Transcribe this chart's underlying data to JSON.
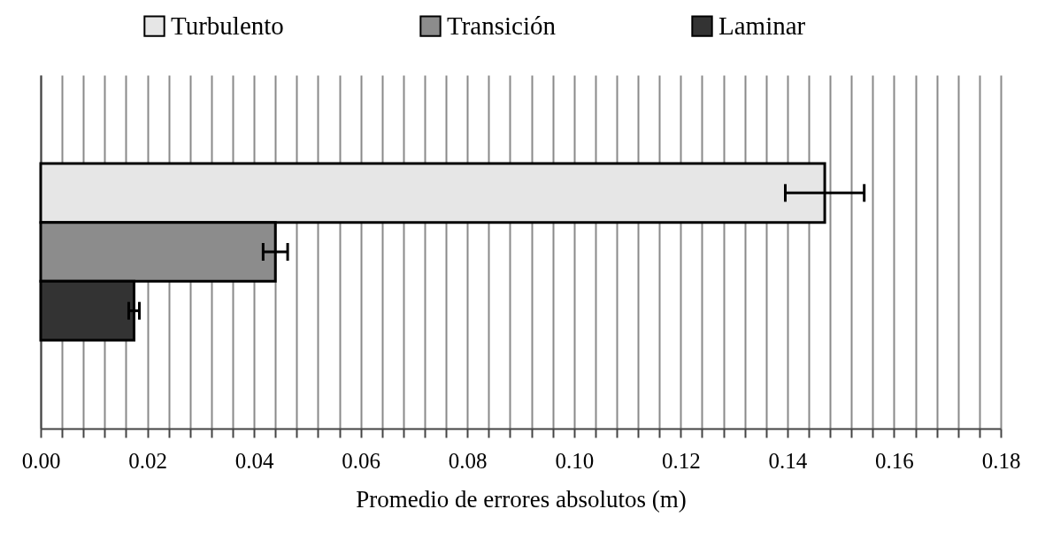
{
  "chart_data": {
    "type": "bar",
    "orientation": "horizontal",
    "categories": [
      null
    ],
    "series": [
      {
        "name": "Turbulento",
        "color": "#e6e6e6",
        "values": [
          0.147
        ],
        "errors": [
          0.0074
        ]
      },
      {
        "name": "Transición",
        "color": "#8c8c8c",
        "values": [
          0.044
        ],
        "errors": [
          0.0023
        ]
      },
      {
        "name": "Laminar",
        "color": "#333333",
        "values": [
          0.0175
        ],
        "errors": [
          0.001
        ]
      }
    ],
    "xlabel": "Promedio de errores absolutos (m)",
    "xlim": [
      0,
      0.18
    ],
    "xticks": [
      {
        "value": 0,
        "label": "0.00"
      },
      {
        "value": 0.004,
        "label": null
      },
      {
        "value": 0.008,
        "label": null
      },
      {
        "value": 0.012,
        "label": null
      },
      {
        "value": 0.016,
        "label": null
      },
      {
        "value": 0.02,
        "label": "0.02"
      },
      {
        "value": 0.024,
        "label": null
      },
      {
        "value": 0.028,
        "label": null
      },
      {
        "value": 0.032,
        "label": null
      },
      {
        "value": 0.036,
        "label": null
      },
      {
        "value": 0.04,
        "label": "0.04"
      },
      {
        "value": 0.044,
        "label": null
      },
      {
        "value": 0.048,
        "label": null
      },
      {
        "value": 0.052,
        "label": null
      },
      {
        "value": 0.056,
        "label": null
      },
      {
        "value": 0.06,
        "label": "0.06"
      },
      {
        "value": 0.064,
        "label": null
      },
      {
        "value": 0.068,
        "label": null
      },
      {
        "value": 0.072,
        "label": null
      },
      {
        "value": 0.076,
        "label": null
      },
      {
        "value": 0.08,
        "label": "0.08"
      },
      {
        "value": 0.084,
        "label": null
      },
      {
        "value": 0.088,
        "label": null
      },
      {
        "value": 0.092,
        "label": null
      },
      {
        "value": 0.096,
        "label": null
      },
      {
        "value": 0.1,
        "label": "0.10"
      },
      {
        "value": 0.104,
        "label": null
      },
      {
        "value": 0.108,
        "label": null
      },
      {
        "value": 0.112,
        "label": null
      },
      {
        "value": 0.116,
        "label": null
      },
      {
        "value": 0.12,
        "label": "0.12"
      },
      {
        "value": 0.124,
        "label": null
      },
      {
        "value": 0.128,
        "label": null
      },
      {
        "value": 0.132,
        "label": null
      },
      {
        "value": 0.136,
        "label": null
      },
      {
        "value": 0.14,
        "label": "0.14"
      },
      {
        "value": 0.144,
        "label": null
      },
      {
        "value": 0.148,
        "label": null
      },
      {
        "value": 0.152,
        "label": null
      },
      {
        "value": 0.156,
        "label": null
      },
      {
        "value": 0.16,
        "label": "0.16"
      },
      {
        "value": 0.164,
        "label": null
      },
      {
        "value": 0.168,
        "label": null
      },
      {
        "value": 0.172,
        "label": null
      },
      {
        "value": 0.176,
        "label": null
      },
      {
        "value": 0.18,
        "label": "0.18"
      }
    ],
    "grid": "x",
    "legend": "top",
    "tick_labels": "x"
  }
}
